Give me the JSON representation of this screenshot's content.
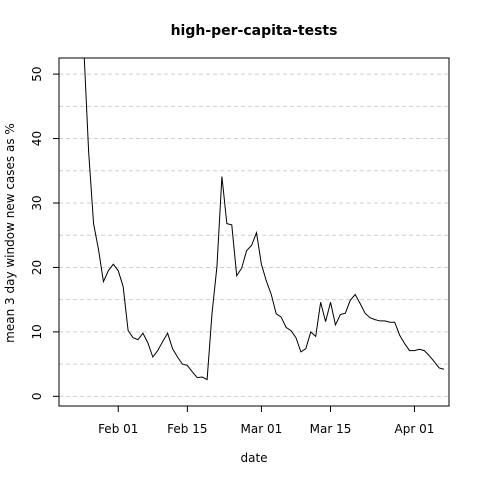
{
  "chart_data": {
    "type": "line",
    "title": "high-per-capita-tests",
    "xlabel": "date",
    "ylabel": "mean  3  day window new cases as %",
    "x_start": "2020-01-21",
    "x_end": "2020-04-06",
    "xlim": [
      "2020-01-20",
      "2020-04-08"
    ],
    "ylim": [
      -1.5,
      52.5
    ],
    "xticks": [
      {
        "date": "2020-02-01",
        "label": "Feb 01"
      },
      {
        "date": "2020-02-15",
        "label": "Feb 15"
      },
      {
        "date": "2020-03-01",
        "label": "Mar 01"
      },
      {
        "date": "2020-03-15",
        "label": "Mar 15"
      },
      {
        "date": "2020-04-01",
        "label": "Apr 01"
      }
    ],
    "yticks": [
      0,
      10,
      20,
      30,
      40,
      50
    ],
    "grid": {
      "horizontal": true,
      "vertical": false,
      "style": "dashed"
    },
    "series": [
      {
        "values": [
          54.5,
          54.5,
          54.5,
          54.5,
          54.5,
          38,
          26.8,
          22.8,
          17.8,
          19.5,
          20.5,
          19.5,
          17,
          10.2,
          9.1,
          8.8,
          9.8,
          8.3,
          6.1,
          7.1,
          8.5,
          9.8,
          7.4,
          6.1,
          5.0,
          4.8,
          3.8,
          2.9,
          3.0,
          2.6,
          12.9,
          20.2,
          34.1,
          26.8,
          26.6,
          18.7,
          19.9,
          22.6,
          23.4,
          25.4,
          20.5,
          17.9,
          15.8,
          12.8,
          12.3,
          10.7,
          10.2,
          9.1,
          6.9,
          7.4,
          10.0,
          9.3,
          14.6,
          11.6,
          14.6,
          11.1,
          12.7,
          12.9,
          14.9,
          15.8,
          14.4,
          12.9,
          12.2,
          11.9,
          11.7,
          11.7,
          11.5,
          11.5,
          9.5,
          8.2,
          7.1,
          7.1,
          7.3,
          7.1,
          6.3,
          5.4,
          4.4,
          4.2
        ]
      }
    ]
  }
}
